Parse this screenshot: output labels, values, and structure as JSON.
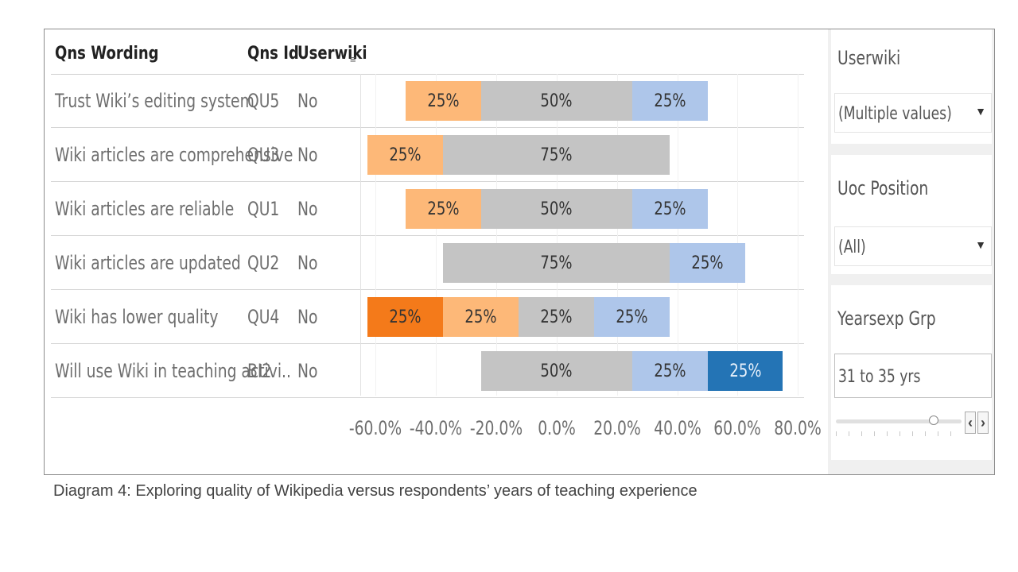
{
  "table": {
    "headers": [
      "Qns Wording",
      "Qns Id",
      "Userwiki"
    ],
    "rows": [
      {
        "wording": "Trust Wiki’s editing system",
        "id": "QU5",
        "userwiki": "No"
      },
      {
        "wording": "Wiki articles are comprehensive",
        "id": "QU3",
        "userwiki": "No"
      },
      {
        "wording": "Wiki articles are reliable",
        "id": "QU1",
        "userwiki": "No"
      },
      {
        "wording": "Wiki articles are updated",
        "id": "QU2",
        "userwiki": "No"
      },
      {
        "wording": "Wiki has lower quality",
        "id": "QU4",
        "userwiki": "No"
      },
      {
        "wording": "Will use Wiki in teaching activi..",
        "id": "BI2",
        "userwiki": "No"
      }
    ]
  },
  "chart_data": {
    "type": "bar",
    "orientation": "horizontal-diverging",
    "categories": [
      "QU5",
      "QU3",
      "QU1",
      "QU2",
      "QU4",
      "BI2"
    ],
    "xlim": [
      -0.65,
      0.82
    ],
    "x_ticks": [
      "-60.0%",
      "-40.0%",
      "-20.0%",
      "0.0%",
      "20.0%",
      "40.0%",
      "60.0%",
      "80.0%"
    ],
    "x_tick_values": [
      -0.6,
      -0.4,
      -0.2,
      0.0,
      0.2,
      0.4,
      0.6,
      0.8
    ],
    "colors": {
      "strong_negative": "#f47a1a",
      "negative": "#fdb878",
      "neutral": "#c4c4c4",
      "positive": "#aec6ea",
      "strong_positive": "#2474b5"
    },
    "rows": [
      {
        "segments": [
          {
            "cat": "negative",
            "start": -0.5,
            "end": -0.25,
            "label": "25%"
          },
          {
            "cat": "neutral",
            "start": -0.25,
            "end": 0.25,
            "label": "50%"
          },
          {
            "cat": "positive",
            "start": 0.25,
            "end": 0.5,
            "label": "25%"
          }
        ]
      },
      {
        "segments": [
          {
            "cat": "negative",
            "start": -0.625,
            "end": -0.375,
            "label": "25%"
          },
          {
            "cat": "neutral",
            "start": -0.375,
            "end": 0.375,
            "label": "75%"
          }
        ]
      },
      {
        "segments": [
          {
            "cat": "negative",
            "start": -0.5,
            "end": -0.25,
            "label": "25%"
          },
          {
            "cat": "neutral",
            "start": -0.25,
            "end": 0.25,
            "label": "50%"
          },
          {
            "cat": "positive",
            "start": 0.25,
            "end": 0.5,
            "label": "25%"
          }
        ]
      },
      {
        "segments": [
          {
            "cat": "neutral",
            "start": -0.375,
            "end": 0.375,
            "label": "75%"
          },
          {
            "cat": "positive",
            "start": 0.375,
            "end": 0.625,
            "label": "25%"
          }
        ]
      },
      {
        "segments": [
          {
            "cat": "strong_negative",
            "start": -0.625,
            "end": -0.375,
            "label": "25%"
          },
          {
            "cat": "negative",
            "start": -0.375,
            "end": -0.125,
            "label": "25%"
          },
          {
            "cat": "neutral",
            "start": -0.125,
            "end": 0.125,
            "label": "25%"
          },
          {
            "cat": "positive",
            "start": 0.125,
            "end": 0.375,
            "label": "25%"
          }
        ]
      },
      {
        "segments": [
          {
            "cat": "neutral",
            "start": -0.25,
            "end": 0.25,
            "label": "50%"
          },
          {
            "cat": "positive",
            "start": 0.25,
            "end": 0.5,
            "label": "25%"
          },
          {
            "cat": "strong_positive",
            "start": 0.5,
            "end": 0.75,
            "label": "25%"
          }
        ]
      }
    ]
  },
  "filters": {
    "userwiki": {
      "title": "Userwiki",
      "value": "(Multiple values)"
    },
    "uoc_position": {
      "title": "Uoc Position",
      "value": "(All)"
    },
    "yearsexp": {
      "title": "Yearsexp Grp",
      "value": "31 to 35 yrs",
      "slider_fraction": 0.8
    }
  },
  "caption": "Diagram 4: Exploring quality of Wikipedia versus respondents’ years of teaching experience"
}
